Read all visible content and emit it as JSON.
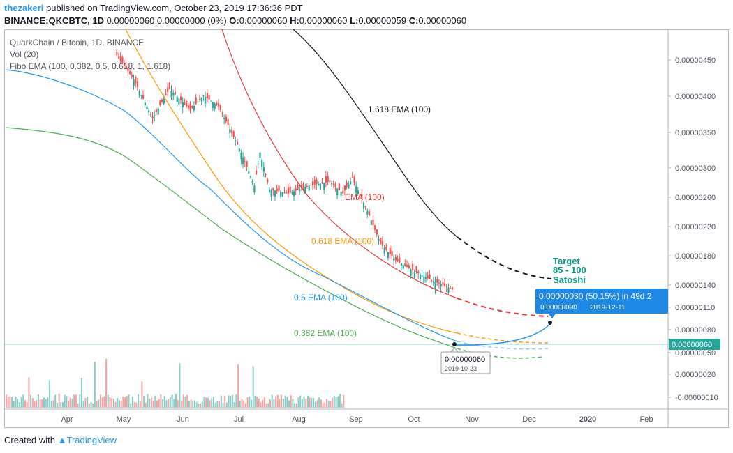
{
  "header": {
    "author": "thezakeri",
    "published": "published on TradingView.com, October 23, 2019 17:36:36 PDT",
    "symbol_line": "BINANCE:QKCBTC, 1D",
    "change": "0.00000060 0.00000000 (0%)",
    "o_label": "O:",
    "o": "0.00000060",
    "h_label": "H:",
    "h": "0.00000060",
    "l_label": "L:",
    "l": "0.00000059",
    "c_label": "C:",
    "c": "0.00000060"
  },
  "legend": {
    "title": "QuarkChain / Bitcoin, 1D, BINANCE",
    "vol": "Vol (20)",
    "fibo": "Fibo EMA (100, 0.382, 0.5, 0.618, 1, 1.618)"
  },
  "footer": {
    "created": "Created with",
    "brand": "TradingView"
  },
  "colors": {
    "up": "#26a69a",
    "down": "#ef5350",
    "ema_1618": "#131722",
    "ema_1": "#e53935",
    "ema_0618": "#ff9800",
    "ema_05": "#2196f3",
    "ema_0382": "#4caf50",
    "accent": "#2196f3",
    "target": "#089981"
  },
  "chart_data": {
    "type": "candlestick",
    "title": "QuarkChain / Bitcoin, 1D, BINANCE",
    "x_ticks": [
      "Apr",
      "May",
      "Jun",
      "Jul",
      "Aug",
      "Sep",
      "Oct",
      "Nov",
      "Dec",
      "2020",
      "Feb"
    ],
    "y_ticks": [
      "0.00000450",
      "0.00000400",
      "0.00000350",
      "0.00000300",
      "0.00000260",
      "0.00000220",
      "0.00000180",
      "0.00000140",
      "0.00000110",
      "0.00000080",
      "0.00000050",
      "0.00000020",
      "-0.00000010"
    ],
    "y_scale": "log",
    "last_price": "0.00000060",
    "close_series": [
      {
        "date": "2019-04-27",
        "close": 4.7e-06
      },
      {
        "date": "2019-05-06",
        "close": 3.8e-06
      },
      {
        "date": "2019-05-16",
        "close": 2.7e-06
      },
      {
        "date": "2019-05-25",
        "close": 3.5e-06
      },
      {
        "date": "2019-06-05",
        "close": 2.9e-06
      },
      {
        "date": "2019-06-12",
        "close": 3.3e-06
      },
      {
        "date": "2019-06-20",
        "close": 3e-06
      },
      {
        "date": "2019-06-28",
        "close": 2.3e-06
      },
      {
        "date": "2019-07-02",
        "close": 2e-06
      },
      {
        "date": "2019-07-09",
        "close": 1.5e-06
      },
      {
        "date": "2019-07-12",
        "close": 2e-06
      },
      {
        "date": "2019-07-17",
        "close": 1.45e-06
      },
      {
        "date": "2019-07-27",
        "close": 1.4e-06
      },
      {
        "date": "2019-08-07",
        "close": 1.5e-06
      },
      {
        "date": "2019-08-18",
        "close": 1.55e-06
      },
      {
        "date": "2019-08-25",
        "close": 1.4e-06
      },
      {
        "date": "2019-08-30",
        "close": 1.6e-06
      },
      {
        "date": "2019-09-07",
        "close": 1.2e-06
      },
      {
        "date": "2019-09-14",
        "close": 9e-07
      },
      {
        "date": "2019-09-22",
        "close": 7.8e-07
      },
      {
        "date": "2019-09-30",
        "close": 7.2e-07
      },
      {
        "date": "2019-10-10",
        "close": 6.6e-07
      },
      {
        "date": "2019-10-23",
        "close": 6e-07
      }
    ],
    "series": [
      {
        "name": "1.618 EMA (100)",
        "color": "#131722"
      },
      {
        "name": "EMA (100)",
        "color": "#e53935"
      },
      {
        "name": "0.618 EMA (100)",
        "color": "#ff9800"
      },
      {
        "name": "0.5 EMA (100)",
        "color": "#2196f3"
      },
      {
        "name": "0.382 EMA (100)",
        "color": "#4caf50"
      }
    ],
    "annotations": {
      "target": [
        "Target",
        "85 - 100",
        "Satoshi"
      ],
      "measure": "0.00000030 (50.15%) in 49d 2",
      "measure_price": "0.00000090",
      "measure_date": "2019-12-11",
      "start_price": "0.00000060",
      "start_date": "2019-10-23"
    }
  }
}
